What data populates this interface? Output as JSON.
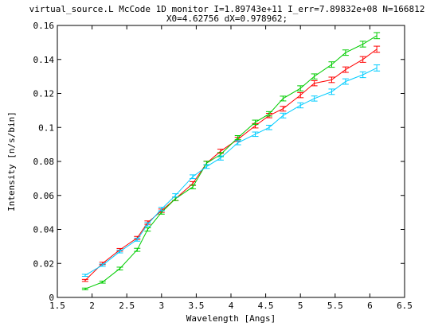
{
  "chart_data": {
    "type": "line",
    "title": "virtual_source.L McCode 1D monitor I=1.89743e+11 I_err=7.89832e+08 N=166812",
    "subtitle": "X0=4.62756 dX=0.978962;",
    "xlabel": "Wavelength [Angs]",
    "ylabel": "Intensity [n/s/bin]",
    "xlim": [
      1.5,
      6.5
    ],
    "ylim": [
      0,
      0.16
    ],
    "xticks": [
      "1.5",
      "2",
      "2.5",
      "3",
      "3.5",
      "4",
      "4.5",
      "5",
      "5.5",
      "6",
      "6.5"
    ],
    "yticks": [
      "0",
      "0.02",
      "0.04",
      "0.06",
      "0.08",
      "0.1",
      "0.12",
      "0.14",
      "0.16"
    ],
    "grid": false,
    "x": [
      1.9,
      2.15,
      2.4,
      2.65,
      2.8,
      3.0,
      3.2,
      3.45,
      3.65,
      3.85,
      4.1,
      4.35,
      4.55,
      4.75,
      5.0,
      5.2,
      5.45,
      5.65,
      5.9,
      6.1
    ],
    "series": [
      {
        "color": "#ff0000",
        "values": [
          0.01,
          0.02,
          0.028,
          0.035,
          0.044,
          0.051,
          0.058,
          0.067,
          0.079,
          0.086,
          0.093,
          0.101,
          0.107,
          0.111,
          0.119,
          0.126,
          0.128,
          0.134,
          0.14,
          0.146
        ],
        "err": [
          0.0006,
          0.0007,
          0.0008,
          0.0009,
          0.001,
          0.001,
          0.001,
          0.0011,
          0.0011,
          0.0012,
          0.0012,
          0.0013,
          0.0013,
          0.0014,
          0.0015,
          0.0015,
          0.0016,
          0.0016,
          0.0017,
          0.0018
        ]
      },
      {
        "color": "#00cc00",
        "values": [
          0.005,
          0.009,
          0.017,
          0.028,
          0.04,
          0.05,
          0.058,
          0.065,
          0.079,
          0.084,
          0.094,
          0.103,
          0.108,
          0.117,
          0.123,
          0.13,
          0.137,
          0.144,
          0.149,
          0.154
        ],
        "err": [
          0.0005,
          0.0006,
          0.0008,
          0.0009,
          0.001,
          0.001,
          0.001,
          0.0011,
          0.0011,
          0.0012,
          0.0012,
          0.0013,
          0.0013,
          0.0014,
          0.0015,
          0.0015,
          0.0016,
          0.0016,
          0.0017,
          0.0018
        ]
      },
      {
        "color": "#00ccff",
        "values": [
          0.013,
          0.019,
          0.027,
          0.034,
          0.043,
          0.052,
          0.06,
          0.071,
          0.077,
          0.082,
          0.091,
          0.096,
          0.1,
          0.107,
          0.113,
          0.117,
          0.121,
          0.127,
          0.131,
          0.135
        ],
        "err": [
          0.0006,
          0.0007,
          0.0008,
          0.0009,
          0.001,
          0.001,
          0.001,
          0.0011,
          0.0011,
          0.0012,
          0.0012,
          0.0013,
          0.0013,
          0.0014,
          0.0015,
          0.0015,
          0.0016,
          0.0016,
          0.0017,
          0.0018
        ]
      }
    ]
  }
}
